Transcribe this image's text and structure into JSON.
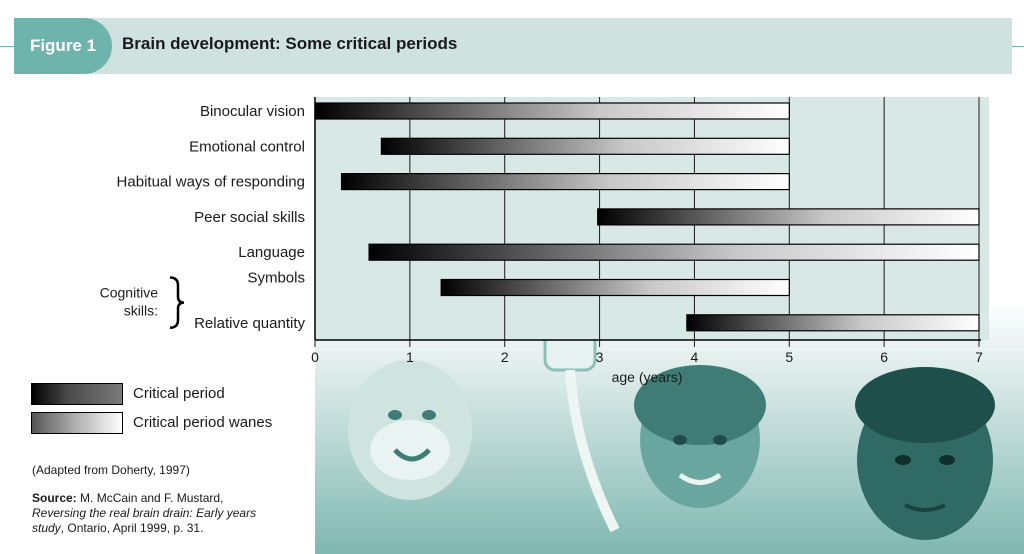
{
  "figure": {
    "tab_label": "Figure 1",
    "title": "Brain development: Some critical periods"
  },
  "chart_data": {
    "type": "bar",
    "orientation": "horizontal",
    "categories": [
      "Binocular vision",
      "Emotional control",
      "Habitual ways of responding",
      "Peer social skills",
      "Language",
      "Symbols",
      "Relative quantity"
    ],
    "group_label": "Cognitive skills:",
    "group_members": [
      "Symbols",
      "Relative quantity"
    ],
    "series": [
      {
        "name": "Critical period",
        "start": [
          0,
          0.7,
          0.28,
          2.98,
          0.57,
          1.33,
          3.92
        ]
      },
      {
        "name": "Critical period wanes",
        "end": [
          5,
          5,
          5,
          7,
          7,
          5,
          7
        ]
      }
    ],
    "xlabel": "age (years)",
    "xlim": [
      0,
      7
    ],
    "xticks": [
      "0",
      "1",
      "2",
      "3",
      "4",
      "5",
      "6",
      "7"
    ],
    "grid": true,
    "colors": {
      "grid": "#1a1a1a",
      "plot_bg": "#d8e8e5",
      "accent": "#6fb3ad"
    }
  },
  "legend": {
    "critical_label": "Critical period",
    "wanes_label": "Critical period wanes"
  },
  "notes": {
    "adapted": "(Adapted from Doherty, 1997)",
    "source_label": "Source:",
    "source_authors": "M. McCain and F. Mustard,",
    "source_title": "Reversing the real brain drain: Early years study",
    "source_rest": ", Ontario, April 1999, p. 31."
  },
  "photo": {
    "description_icon": "children-photo-icon"
  }
}
